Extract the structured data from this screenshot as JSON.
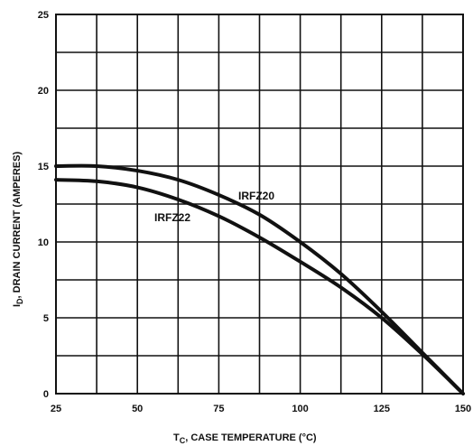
{
  "chart_data": {
    "type": "line",
    "xlabel": {
      "prefix": "T",
      "sub": "C",
      "rest": ", CASE TEMPERATURE (°C)"
    },
    "ylabel": {
      "prefix": "I",
      "sub": "D",
      "rest": ", DRAIN CURRENT (AMPERES)"
    },
    "xlim": [
      25,
      150
    ],
    "ylim": [
      0,
      25
    ],
    "x_ticks": [
      25,
      50,
      75,
      100,
      125,
      150
    ],
    "y_ticks": [
      0,
      5,
      10,
      15,
      20,
      25
    ],
    "grid": true,
    "series": [
      {
        "name": "IRFZ20",
        "x": [
          25,
          37.5,
          50,
          62.5,
          75,
          87.5,
          100,
          112.5,
          125,
          137.5,
          150
        ],
        "y": [
          15.0,
          15.0,
          14.7,
          14.1,
          13.1,
          11.8,
          10.0,
          7.9,
          5.4,
          2.7,
          0.0
        ]
      },
      {
        "name": "IRFZ22",
        "x": [
          25,
          37.5,
          50,
          62.5,
          75,
          87.5,
          100,
          112.5,
          125,
          137.5,
          150
        ],
        "y": [
          14.1,
          14.0,
          13.6,
          12.8,
          11.7,
          10.3,
          8.7,
          7.0,
          5.0,
          2.6,
          0.0
        ]
      }
    ]
  }
}
